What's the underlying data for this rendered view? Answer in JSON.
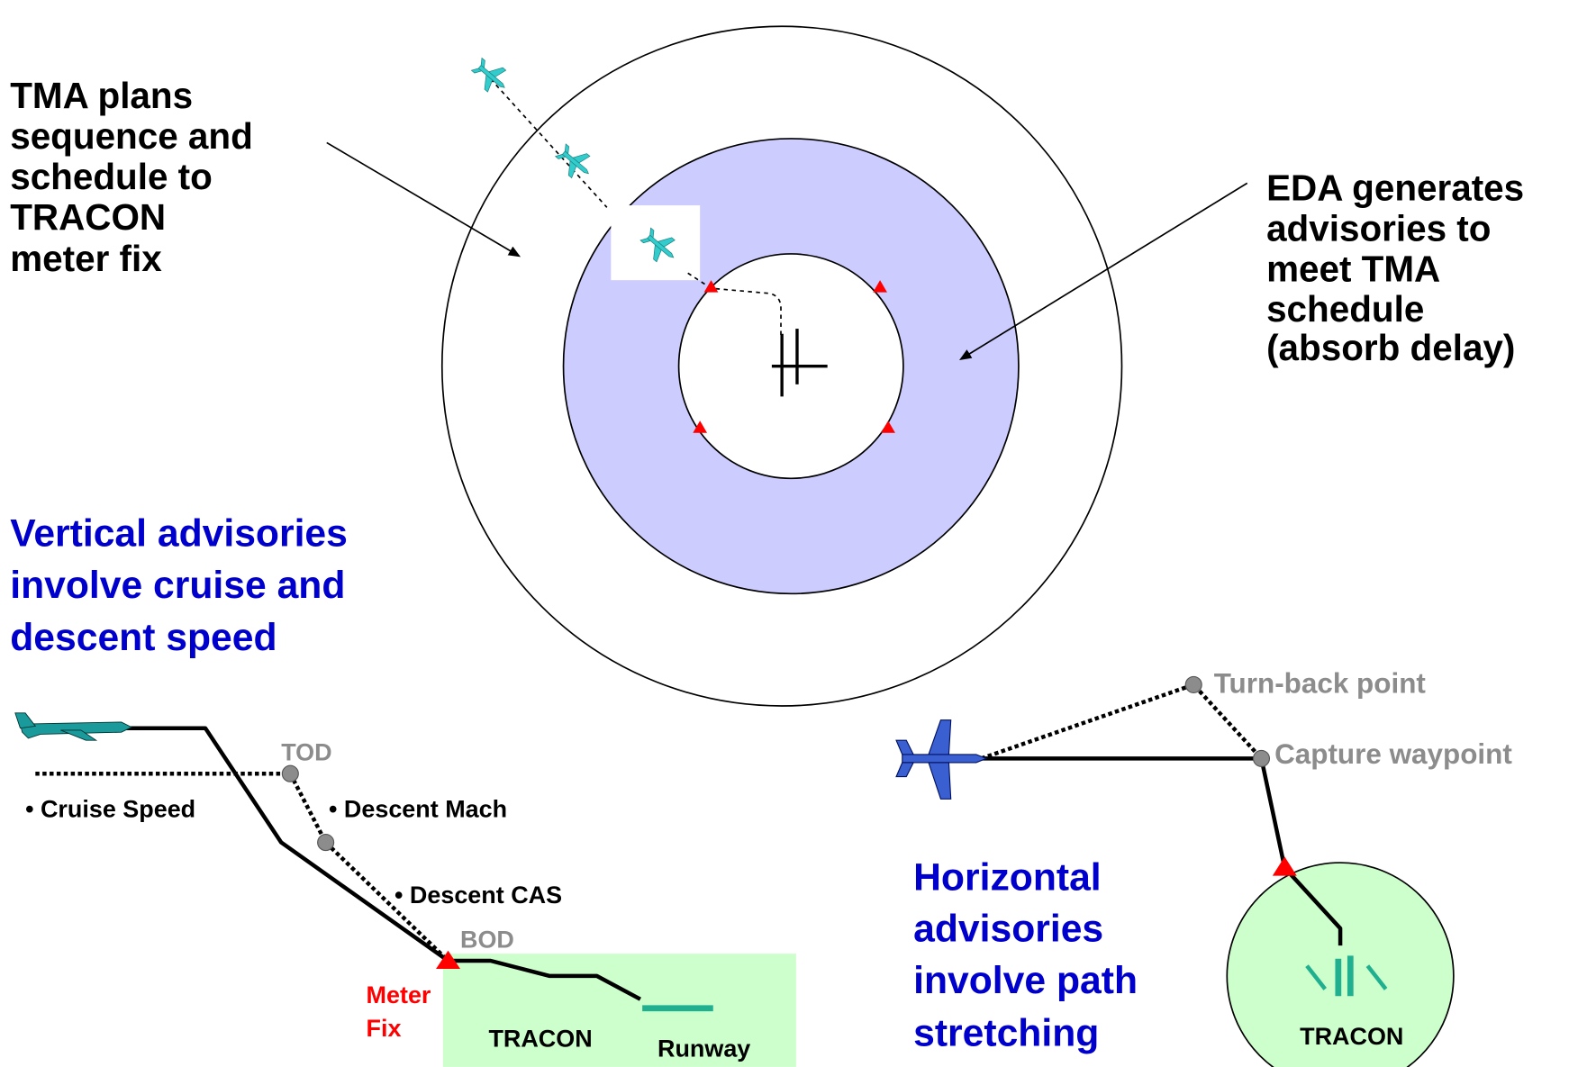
{
  "annotations": {
    "tma": [
      "TMA plans",
      "sequence and",
      "schedule to",
      "TRACON",
      "meter fix"
    ],
    "eda": [
      "EDA generates",
      "advisories to",
      "meet TMA",
      "schedule",
      "(absorb delay)"
    ],
    "vertical": [
      "Vertical advisories",
      "involve cruise and",
      "descent speed"
    ],
    "horizontal": [
      "Horizontal",
      "advisories",
      "involve path",
      "stretching"
    ]
  },
  "vertical_profile": {
    "tod": "TOD",
    "bod": "BOD",
    "cruise_speed": "• Cruise Speed",
    "descent_mach": "• Descent Mach",
    "descent_cas": "• Descent CAS",
    "meter_fix": [
      "Meter",
      "Fix"
    ],
    "tracon": "TRACON",
    "runway": "Runway"
  },
  "horizontal_path": {
    "turn_back": "Turn-back point",
    "capture": "Capture waypoint",
    "tracon": "TRACON"
  }
}
